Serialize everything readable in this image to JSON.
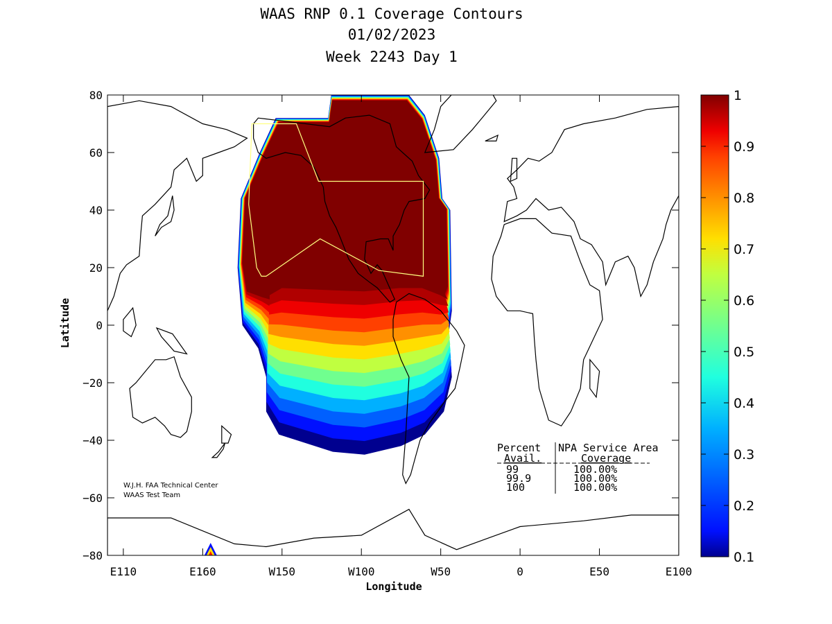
{
  "chart_data": {
    "type": "heatmap",
    "title": [
      "WAAS RNP 0.1 Coverage Contours",
      "01/02/2023",
      "Week 2243 Day 1"
    ],
    "xlabel": "Longitude",
    "ylabel": "Latitude",
    "xlim": [
      100,
      460
    ],
    "ylim": [
      -80,
      80
    ],
    "x_ticks": [
      {
        "label": "E110",
        "value": 110
      },
      {
        "label": "E160",
        "value": 160
      },
      {
        "label": "W150",
        "value": 210
      },
      {
        "label": "W100",
        "value": 260
      },
      {
        "label": "W50",
        "value": 310
      },
      {
        "label": "0",
        "value": 360
      },
      {
        "label": "E50",
        "value": 410
      },
      {
        "label": "E100",
        "value": 460
      }
    ],
    "y_ticks": [
      "80",
      "60",
      "40",
      "20",
      "0",
      "−20",
      "−40",
      "−60",
      "−80"
    ],
    "colorbar": {
      "min": 0.1,
      "max": 1,
      "ticks": [
        "0.1",
        "0.2",
        "0.3",
        "0.4",
        "0.5",
        "0.6",
        "0.7",
        "0.8",
        "0.9",
        "1"
      ]
    },
    "contour_levels": [
      {
        "value": 0.1,
        "color": "#00008f"
      },
      {
        "value": 0.15,
        "color": "#0010ff"
      },
      {
        "value": 0.25,
        "color": "#0060ff"
      },
      {
        "value": 0.35,
        "color": "#00b0ff"
      },
      {
        "value": 0.45,
        "color": "#20ffdf"
      },
      {
        "value": 0.55,
        "color": "#70ff8f"
      },
      {
        "value": 0.65,
        "color": "#c0ff40"
      },
      {
        "value": 0.72,
        "color": "#ffdf00"
      },
      {
        "value": 0.8,
        "color": "#ff9000"
      },
      {
        "value": 0.88,
        "color": "#ff4000"
      },
      {
        "value": 0.93,
        "color": "#ef0000"
      },
      {
        "value": 0.97,
        "color": "#b00000"
      },
      {
        "value": 1.0,
        "color": "#800000"
      }
    ],
    "coverage_boundary_lon_lat": [
      [
        214,
        72
      ],
      [
        239,
        72
      ],
      [
        241,
        80
      ],
      [
        290,
        80
      ],
      [
        300,
        73
      ],
      [
        309,
        58
      ],
      [
        311,
        44
      ],
      [
        316,
        40
      ],
      [
        317,
        5
      ],
      [
        315,
        -3
      ],
      [
        317,
        -18
      ],
      [
        312,
        -30
      ],
      [
        300,
        -38
      ],
      [
        285,
        -42
      ],
      [
        262,
        -45
      ],
      [
        242,
        -44
      ],
      [
        208,
        -38
      ],
      [
        200,
        -30
      ],
      [
        200,
        -18
      ],
      [
        195,
        -8
      ],
      [
        185,
        0
      ],
      [
        182,
        20
      ],
      [
        184,
        44
      ],
      [
        196,
        60
      ],
      [
        206,
        72
      ]
    ],
    "service_area_lon_lat": [
      [
        191,
        70
      ],
      [
        219,
        70
      ],
      [
        233,
        50
      ],
      [
        299,
        50
      ],
      [
        299,
        17
      ],
      [
        271,
        19
      ],
      [
        234,
        30
      ],
      [
        200,
        17
      ],
      [
        197,
        17
      ],
      [
        194,
        20
      ],
      [
        189,
        42
      ]
    ],
    "table": {
      "col1_header": "Percent",
      "col1_sub": "Avail.",
      "col2_header": "NPA Service Area",
      "col2_sub": "Coverage",
      "rows": [
        {
          "avail": "99",
          "coverage": "100.00%"
        },
        {
          "avail": "99.9",
          "coverage": "100.00%"
        },
        {
          "avail": "100",
          "coverage": "100.00%"
        }
      ]
    },
    "credit": [
      "W.J.H. FAA Technical Center",
      "WAAS Test Team"
    ]
  },
  "colors": {
    "background": "#ffffff",
    "frame": "#000000",
    "service_area": "#ffff80"
  }
}
